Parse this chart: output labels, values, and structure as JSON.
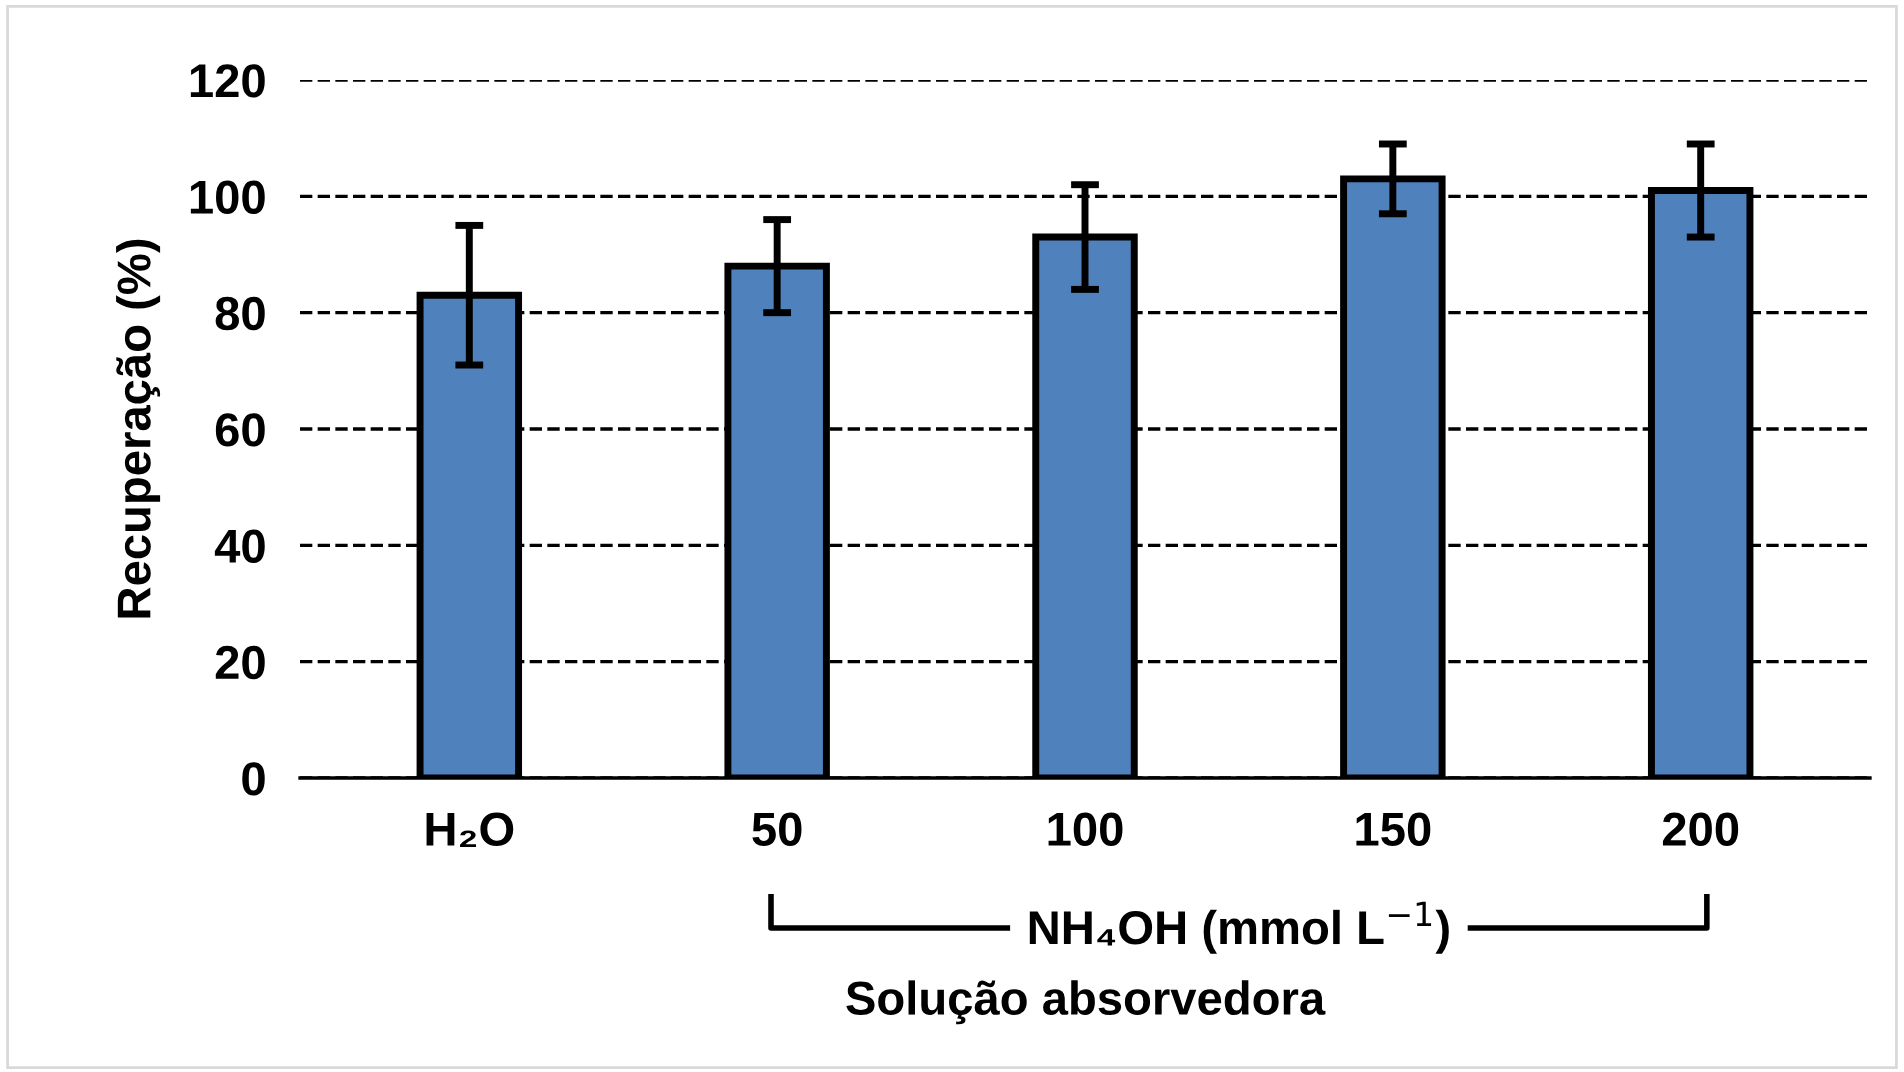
{
  "chart_data": {
    "type": "bar",
    "categories": [
      "H₂O",
      "50",
      "100",
      "150",
      "200"
    ],
    "values": [
      83,
      88,
      93,
      103,
      101
    ],
    "errors": [
      12,
      8,
      9,
      6,
      8
    ],
    "color": "#4f81bd",
    "ylabel": "Recuperação (%)",
    "xlabel": "Solução absorvedora",
    "annotations": [
      "NH₄OH (mmol L$^{−1}$)"
    ],
    "ylim": [
      0,
      120
    ],
    "yticks": [
      0,
      20,
      40,
      60,
      80,
      100,
      120
    ],
    "grid": "y",
    "line_style": "dashed"
  }
}
